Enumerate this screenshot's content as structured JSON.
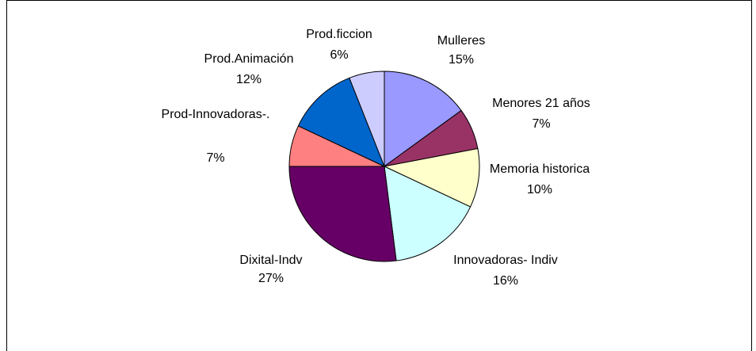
{
  "chart_data": {
    "type": "pie",
    "categories": [
      "Mulleres",
      "Menores 21 años",
      "Memoria historica",
      "Innovadoras- Indiv",
      "Dixital-Indv",
      "Prod-Innovadoras-.",
      "Prod.Animación",
      "Prod.ficcion"
    ],
    "values": [
      15,
      7,
      10,
      16,
      27,
      7,
      12,
      6
    ],
    "value_labels": [
      "15%",
      "7%",
      "10%",
      "16%",
      "27%",
      "7%",
      "12%",
      "6%"
    ],
    "colors": [
      "#9999ff",
      "#993366",
      "#ffffcc",
      "#ccffff",
      "#660066",
      "#ff8080",
      "#0066cc",
      "#ccccff"
    ]
  }
}
